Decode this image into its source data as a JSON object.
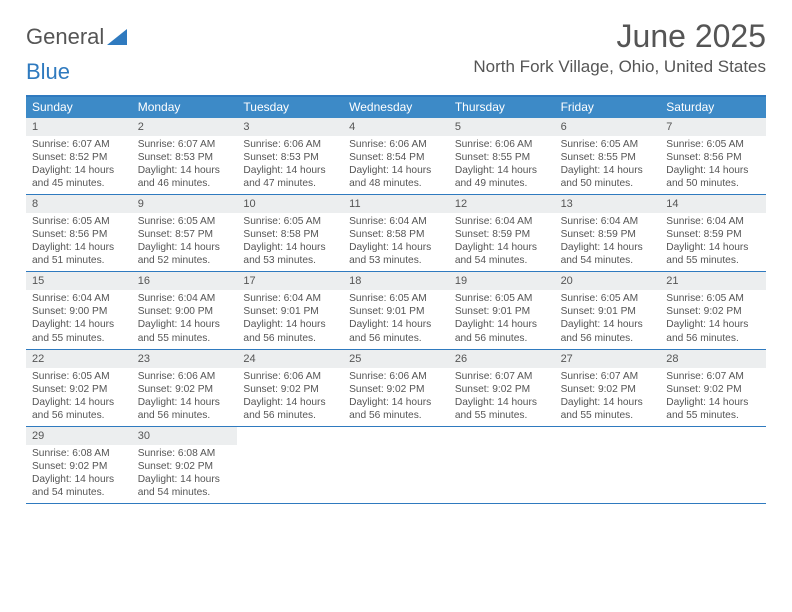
{
  "brand": {
    "part1": "General",
    "part2": "Blue"
  },
  "title": "June 2025",
  "location": "North Fork Village, Ohio, United States",
  "colors": {
    "header_bg": "#3d8ac7",
    "border": "#2f7abf",
    "daynum_bg": "#eceeef",
    "text": "#555555",
    "white": "#ffffff"
  },
  "fonts": {
    "title_size": 32,
    "location_size": 17,
    "dow_size": 12,
    "daynum_size": 11,
    "info_size": 10.2
  },
  "dow": [
    "Sunday",
    "Monday",
    "Tuesday",
    "Wednesday",
    "Thursday",
    "Friday",
    "Saturday"
  ],
  "weeks": [
    [
      {
        "n": "1",
        "sr": "Sunrise: 6:07 AM",
        "ss": "Sunset: 8:52 PM",
        "d1": "Daylight: 14 hours",
        "d2": "and 45 minutes."
      },
      {
        "n": "2",
        "sr": "Sunrise: 6:07 AM",
        "ss": "Sunset: 8:53 PM",
        "d1": "Daylight: 14 hours",
        "d2": "and 46 minutes."
      },
      {
        "n": "3",
        "sr": "Sunrise: 6:06 AM",
        "ss": "Sunset: 8:53 PM",
        "d1": "Daylight: 14 hours",
        "d2": "and 47 minutes."
      },
      {
        "n": "4",
        "sr": "Sunrise: 6:06 AM",
        "ss": "Sunset: 8:54 PM",
        "d1": "Daylight: 14 hours",
        "d2": "and 48 minutes."
      },
      {
        "n": "5",
        "sr": "Sunrise: 6:06 AM",
        "ss": "Sunset: 8:55 PM",
        "d1": "Daylight: 14 hours",
        "d2": "and 49 minutes."
      },
      {
        "n": "6",
        "sr": "Sunrise: 6:05 AM",
        "ss": "Sunset: 8:55 PM",
        "d1": "Daylight: 14 hours",
        "d2": "and 50 minutes."
      },
      {
        "n": "7",
        "sr": "Sunrise: 6:05 AM",
        "ss": "Sunset: 8:56 PM",
        "d1": "Daylight: 14 hours",
        "d2": "and 50 minutes."
      }
    ],
    [
      {
        "n": "8",
        "sr": "Sunrise: 6:05 AM",
        "ss": "Sunset: 8:56 PM",
        "d1": "Daylight: 14 hours",
        "d2": "and 51 minutes."
      },
      {
        "n": "9",
        "sr": "Sunrise: 6:05 AM",
        "ss": "Sunset: 8:57 PM",
        "d1": "Daylight: 14 hours",
        "d2": "and 52 minutes."
      },
      {
        "n": "10",
        "sr": "Sunrise: 6:05 AM",
        "ss": "Sunset: 8:58 PM",
        "d1": "Daylight: 14 hours",
        "d2": "and 53 minutes."
      },
      {
        "n": "11",
        "sr": "Sunrise: 6:04 AM",
        "ss": "Sunset: 8:58 PM",
        "d1": "Daylight: 14 hours",
        "d2": "and 53 minutes."
      },
      {
        "n": "12",
        "sr": "Sunrise: 6:04 AM",
        "ss": "Sunset: 8:59 PM",
        "d1": "Daylight: 14 hours",
        "d2": "and 54 minutes."
      },
      {
        "n": "13",
        "sr": "Sunrise: 6:04 AM",
        "ss": "Sunset: 8:59 PM",
        "d1": "Daylight: 14 hours",
        "d2": "and 54 minutes."
      },
      {
        "n": "14",
        "sr": "Sunrise: 6:04 AM",
        "ss": "Sunset: 8:59 PM",
        "d1": "Daylight: 14 hours",
        "d2": "and 55 minutes."
      }
    ],
    [
      {
        "n": "15",
        "sr": "Sunrise: 6:04 AM",
        "ss": "Sunset: 9:00 PM",
        "d1": "Daylight: 14 hours",
        "d2": "and 55 minutes."
      },
      {
        "n": "16",
        "sr": "Sunrise: 6:04 AM",
        "ss": "Sunset: 9:00 PM",
        "d1": "Daylight: 14 hours",
        "d2": "and 55 minutes."
      },
      {
        "n": "17",
        "sr": "Sunrise: 6:04 AM",
        "ss": "Sunset: 9:01 PM",
        "d1": "Daylight: 14 hours",
        "d2": "and 56 minutes."
      },
      {
        "n": "18",
        "sr": "Sunrise: 6:05 AM",
        "ss": "Sunset: 9:01 PM",
        "d1": "Daylight: 14 hours",
        "d2": "and 56 minutes."
      },
      {
        "n": "19",
        "sr": "Sunrise: 6:05 AM",
        "ss": "Sunset: 9:01 PM",
        "d1": "Daylight: 14 hours",
        "d2": "and 56 minutes."
      },
      {
        "n": "20",
        "sr": "Sunrise: 6:05 AM",
        "ss": "Sunset: 9:01 PM",
        "d1": "Daylight: 14 hours",
        "d2": "and 56 minutes."
      },
      {
        "n": "21",
        "sr": "Sunrise: 6:05 AM",
        "ss": "Sunset: 9:02 PM",
        "d1": "Daylight: 14 hours",
        "d2": "and 56 minutes."
      }
    ],
    [
      {
        "n": "22",
        "sr": "Sunrise: 6:05 AM",
        "ss": "Sunset: 9:02 PM",
        "d1": "Daylight: 14 hours",
        "d2": "and 56 minutes."
      },
      {
        "n": "23",
        "sr": "Sunrise: 6:06 AM",
        "ss": "Sunset: 9:02 PM",
        "d1": "Daylight: 14 hours",
        "d2": "and 56 minutes."
      },
      {
        "n": "24",
        "sr": "Sunrise: 6:06 AM",
        "ss": "Sunset: 9:02 PM",
        "d1": "Daylight: 14 hours",
        "d2": "and 56 minutes."
      },
      {
        "n": "25",
        "sr": "Sunrise: 6:06 AM",
        "ss": "Sunset: 9:02 PM",
        "d1": "Daylight: 14 hours",
        "d2": "and 56 minutes."
      },
      {
        "n": "26",
        "sr": "Sunrise: 6:07 AM",
        "ss": "Sunset: 9:02 PM",
        "d1": "Daylight: 14 hours",
        "d2": "and 55 minutes."
      },
      {
        "n": "27",
        "sr": "Sunrise: 6:07 AM",
        "ss": "Sunset: 9:02 PM",
        "d1": "Daylight: 14 hours",
        "d2": "and 55 minutes."
      },
      {
        "n": "28",
        "sr": "Sunrise: 6:07 AM",
        "ss": "Sunset: 9:02 PM",
        "d1": "Daylight: 14 hours",
        "d2": "and 55 minutes."
      }
    ],
    [
      {
        "n": "29",
        "sr": "Sunrise: 6:08 AM",
        "ss": "Sunset: 9:02 PM",
        "d1": "Daylight: 14 hours",
        "d2": "and 54 minutes."
      },
      {
        "n": "30",
        "sr": "Sunrise: 6:08 AM",
        "ss": "Sunset: 9:02 PM",
        "d1": "Daylight: 14 hours",
        "d2": "and 54 minutes."
      },
      {
        "empty": true
      },
      {
        "empty": true
      },
      {
        "empty": true
      },
      {
        "empty": true
      },
      {
        "empty": true
      }
    ]
  ]
}
